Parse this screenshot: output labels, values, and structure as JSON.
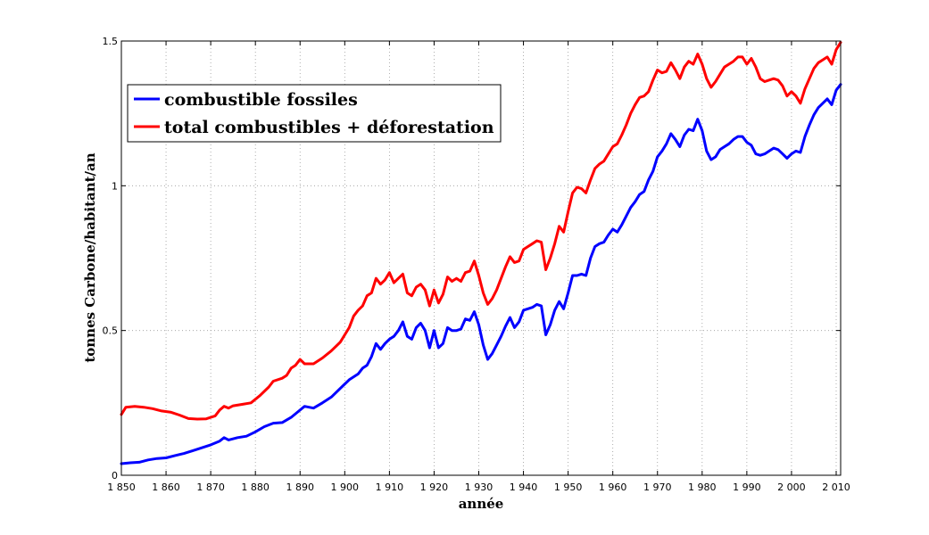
{
  "chart_data": {
    "type": "line",
    "title": "",
    "xlabel": "année",
    "ylabel": "tonnes Carbone/habitant/an",
    "xlim": [
      1850,
      2011
    ],
    "ylim": [
      0,
      1.5
    ],
    "x_ticks": [
      1850,
      1860,
      1870,
      1880,
      1890,
      1900,
      1910,
      1920,
      1930,
      1940,
      1950,
      1960,
      1970,
      1980,
      1990,
      2000,
      2010
    ],
    "x_tick_labels": [
      "1 850",
      "1 860",
      "1 870",
      "1 880",
      "1 890",
      "1 900",
      "1 910",
      "1 920",
      "1 930",
      "1 940",
      "1 950",
      "1 960",
      "1 970",
      "1 980",
      "1 990",
      "2 000",
      "2 010"
    ],
    "y_ticks": [
      0,
      0.5,
      1,
      1.5
    ],
    "y_tick_labels": [
      "0",
      "0.5",
      "1",
      "1.5"
    ],
    "grid": true,
    "legend_position": "top-left",
    "series": [
      {
        "name": "combustible fossiles",
        "color": "#0000ff",
        "points": [
          [
            1850,
            0.04
          ],
          [
            1852,
            0.043
          ],
          [
            1854,
            0.045
          ],
          [
            1856,
            0.053
          ],
          [
            1858,
            0.058
          ],
          [
            1860,
            0.06
          ],
          [
            1862,
            0.068
          ],
          [
            1864,
            0.075
          ],
          [
            1866,
            0.085
          ],
          [
            1868,
            0.095
          ],
          [
            1870,
            0.105
          ],
          [
            1872,
            0.118
          ],
          [
            1873,
            0.13
          ],
          [
            1874,
            0.122
          ],
          [
            1876,
            0.13
          ],
          [
            1878,
            0.135
          ],
          [
            1880,
            0.15
          ],
          [
            1882,
            0.168
          ],
          [
            1884,
            0.18
          ],
          [
            1886,
            0.182
          ],
          [
            1888,
            0.2
          ],
          [
            1890,
            0.225
          ],
          [
            1891,
            0.238
          ],
          [
            1893,
            0.232
          ],
          [
            1895,
            0.25
          ],
          [
            1897,
            0.27
          ],
          [
            1899,
            0.3
          ],
          [
            1901,
            0.33
          ],
          [
            1903,
            0.35
          ],
          [
            1904,
            0.37
          ],
          [
            1905,
            0.38
          ],
          [
            1906,
            0.41
          ],
          [
            1907,
            0.455
          ],
          [
            1908,
            0.435
          ],
          [
            1909,
            0.455
          ],
          [
            1910,
            0.47
          ],
          [
            1911,
            0.48
          ],
          [
            1912,
            0.5
          ],
          [
            1913,
            0.53
          ],
          [
            1914,
            0.48
          ],
          [
            1915,
            0.47
          ],
          [
            1916,
            0.51
          ],
          [
            1917,
            0.525
          ],
          [
            1918,
            0.5
          ],
          [
            1919,
            0.44
          ],
          [
            1920,
            0.5
          ],
          [
            1921,
            0.44
          ],
          [
            1922,
            0.455
          ],
          [
            1923,
            0.51
          ],
          [
            1924,
            0.5
          ],
          [
            1925,
            0.5
          ],
          [
            1926,
            0.505
          ],
          [
            1927,
            0.54
          ],
          [
            1928,
            0.535
          ],
          [
            1929,
            0.565
          ],
          [
            1930,
            0.52
          ],
          [
            1931,
            0.45
          ],
          [
            1932,
            0.4
          ],
          [
            1933,
            0.42
          ],
          [
            1934,
            0.45
          ],
          [
            1935,
            0.48
          ],
          [
            1936,
            0.515
          ],
          [
            1937,
            0.545
          ],
          [
            1938,
            0.51
          ],
          [
            1939,
            0.53
          ],
          [
            1940,
            0.57
          ],
          [
            1941,
            0.575
          ],
          [
            1942,
            0.58
          ],
          [
            1943,
            0.59
          ],
          [
            1944,
            0.585
          ],
          [
            1945,
            0.485
          ],
          [
            1946,
            0.52
          ],
          [
            1947,
            0.57
          ],
          [
            1948,
            0.6
          ],
          [
            1949,
            0.575
          ],
          [
            1950,
            0.63
          ],
          [
            1951,
            0.69
          ],
          [
            1952,
            0.69
          ],
          [
            1953,
            0.695
          ],
          [
            1954,
            0.69
          ],
          [
            1955,
            0.75
          ],
          [
            1956,
            0.79
          ],
          [
            1957,
            0.8
          ],
          [
            1958,
            0.805
          ],
          [
            1959,
            0.83
          ],
          [
            1960,
            0.85
          ],
          [
            1961,
            0.84
          ],
          [
            1962,
            0.865
          ],
          [
            1963,
            0.895
          ],
          [
            1964,
            0.925
          ],
          [
            1965,
            0.945
          ],
          [
            1966,
            0.97
          ],
          [
            1967,
            0.98
          ],
          [
            1968,
            1.02
          ],
          [
            1969,
            1.05
          ],
          [
            1970,
            1.1
          ],
          [
            1971,
            1.12
          ],
          [
            1972,
            1.145
          ],
          [
            1973,
            1.18
          ],
          [
            1974,
            1.16
          ],
          [
            1975,
            1.135
          ],
          [
            1976,
            1.175
          ],
          [
            1977,
            1.195
          ],
          [
            1978,
            1.19
          ],
          [
            1979,
            1.23
          ],
          [
            1980,
            1.19
          ],
          [
            1981,
            1.12
          ],
          [
            1982,
            1.09
          ],
          [
            1983,
            1.1
          ],
          [
            1984,
            1.125
          ],
          [
            1985,
            1.135
          ],
          [
            1986,
            1.145
          ],
          [
            1987,
            1.16
          ],
          [
            1988,
            1.17
          ],
          [
            1989,
            1.17
          ],
          [
            1990,
            1.15
          ],
          [
            1991,
            1.14
          ],
          [
            1992,
            1.11
          ],
          [
            1993,
            1.105
          ],
          [
            1994,
            1.11
          ],
          [
            1995,
            1.12
          ],
          [
            1996,
            1.13
          ],
          [
            1997,
            1.125
          ],
          [
            1998,
            1.11
          ],
          [
            1999,
            1.095
          ],
          [
            2000,
            1.11
          ],
          [
            2001,
            1.12
          ],
          [
            2002,
            1.115
          ],
          [
            2003,
            1.17
          ],
          [
            2004,
            1.21
          ],
          [
            2005,
            1.245
          ],
          [
            2006,
            1.27
          ],
          [
            2007,
            1.285
          ],
          [
            2008,
            1.3
          ],
          [
            2009,
            1.28
          ],
          [
            2010,
            1.33
          ],
          [
            2011,
            1.35
          ]
        ]
      },
      {
        "name": "total combustibles + déforestation",
        "color": "#ff0000",
        "points": [
          [
            1850,
            0.21
          ],
          [
            1851,
            0.235
          ],
          [
            1853,
            0.238
          ],
          [
            1855,
            0.235
          ],
          [
            1857,
            0.23
          ],
          [
            1859,
            0.222
          ],
          [
            1861,
            0.218
          ],
          [
            1863,
            0.208
          ],
          [
            1865,
            0.196
          ],
          [
            1867,
            0.194
          ],
          [
            1869,
            0.195
          ],
          [
            1871,
            0.205
          ],
          [
            1872,
            0.225
          ],
          [
            1873,
            0.238
          ],
          [
            1874,
            0.232
          ],
          [
            1875,
            0.24
          ],
          [
            1877,
            0.245
          ],
          [
            1879,
            0.25
          ],
          [
            1881,
            0.275
          ],
          [
            1883,
            0.305
          ],
          [
            1884,
            0.325
          ],
          [
            1886,
            0.335
          ],
          [
            1887,
            0.345
          ],
          [
            1888,
            0.37
          ],
          [
            1889,
            0.38
          ],
          [
            1890,
            0.4
          ],
          [
            1891,
            0.385
          ],
          [
            1893,
            0.385
          ],
          [
            1895,
            0.405
          ],
          [
            1897,
            0.43
          ],
          [
            1899,
            0.46
          ],
          [
            1901,
            0.51
          ],
          [
            1902,
            0.55
          ],
          [
            1903,
            0.57
          ],
          [
            1904,
            0.585
          ],
          [
            1905,
            0.62
          ],
          [
            1906,
            0.63
          ],
          [
            1907,
            0.68
          ],
          [
            1908,
            0.66
          ],
          [
            1909,
            0.675
          ],
          [
            1910,
            0.7
          ],
          [
            1911,
            0.665
          ],
          [
            1912,
            0.68
          ],
          [
            1913,
            0.695
          ],
          [
            1914,
            0.63
          ],
          [
            1915,
            0.62
          ],
          [
            1916,
            0.65
          ],
          [
            1917,
            0.66
          ],
          [
            1918,
            0.64
          ],
          [
            1919,
            0.585
          ],
          [
            1920,
            0.64
          ],
          [
            1921,
            0.595
          ],
          [
            1922,
            0.625
          ],
          [
            1923,
            0.685
          ],
          [
            1924,
            0.67
          ],
          [
            1925,
            0.68
          ],
          [
            1926,
            0.67
          ],
          [
            1927,
            0.7
          ],
          [
            1928,
            0.705
          ],
          [
            1929,
            0.74
          ],
          [
            1930,
            0.69
          ],
          [
            1931,
            0.63
          ],
          [
            1932,
            0.59
          ],
          [
            1933,
            0.61
          ],
          [
            1934,
            0.64
          ],
          [
            1935,
            0.68
          ],
          [
            1936,
            0.72
          ],
          [
            1937,
            0.755
          ],
          [
            1938,
            0.735
          ],
          [
            1939,
            0.74
          ],
          [
            1940,
            0.78
          ],
          [
            1941,
            0.79
          ],
          [
            1942,
            0.8
          ],
          [
            1943,
            0.81
          ],
          [
            1944,
            0.805
          ],
          [
            1945,
            0.71
          ],
          [
            1946,
            0.75
          ],
          [
            1947,
            0.8
          ],
          [
            1948,
            0.86
          ],
          [
            1949,
            0.84
          ],
          [
            1950,
            0.91
          ],
          [
            1951,
            0.975
          ],
          [
            1952,
            0.995
          ],
          [
            1953,
            0.99
          ],
          [
            1954,
            0.975
          ],
          [
            1955,
            1.02
          ],
          [
            1956,
            1.06
          ],
          [
            1957,
            1.075
          ],
          [
            1958,
            1.085
          ],
          [
            1959,
            1.11
          ],
          [
            1960,
            1.135
          ],
          [
            1961,
            1.145
          ],
          [
            1962,
            1.175
          ],
          [
            1963,
            1.21
          ],
          [
            1964,
            1.25
          ],
          [
            1965,
            1.28
          ],
          [
            1966,
            1.305
          ],
          [
            1967,
            1.31
          ],
          [
            1968,
            1.325
          ],
          [
            1969,
            1.365
          ],
          [
            1970,
            1.4
          ],
          [
            1971,
            1.39
          ],
          [
            1972,
            1.395
          ],
          [
            1973,
            1.425
          ],
          [
            1974,
            1.4
          ],
          [
            1975,
            1.37
          ],
          [
            1976,
            1.41
          ],
          [
            1977,
            1.43
          ],
          [
            1978,
            1.42
          ],
          [
            1979,
            1.455
          ],
          [
            1980,
            1.42
          ],
          [
            1981,
            1.37
          ],
          [
            1982,
            1.34
          ],
          [
            1983,
            1.36
          ],
          [
            1984,
            1.385
          ],
          [
            1985,
            1.41
          ],
          [
            1986,
            1.42
          ],
          [
            1987,
            1.43
          ],
          [
            1988,
            1.445
          ],
          [
            1989,
            1.445
          ],
          [
            1990,
            1.42
          ],
          [
            1991,
            1.44
          ],
          [
            1992,
            1.41
          ],
          [
            1993,
            1.37
          ],
          [
            1994,
            1.36
          ],
          [
            1995,
            1.365
          ],
          [
            1996,
            1.37
          ],
          [
            1997,
            1.365
          ],
          [
            1998,
            1.345
          ],
          [
            1999,
            1.31
          ],
          [
            2000,
            1.325
          ],
          [
            2001,
            1.31
          ],
          [
            2002,
            1.285
          ],
          [
            2003,
            1.335
          ],
          [
            2004,
            1.37
          ],
          [
            2005,
            1.405
          ],
          [
            2006,
            1.425
          ],
          [
            2007,
            1.435
          ],
          [
            2008,
            1.445
          ],
          [
            2009,
            1.42
          ],
          [
            2010,
            1.47
          ],
          [
            2011,
            1.495
          ]
        ]
      }
    ]
  }
}
